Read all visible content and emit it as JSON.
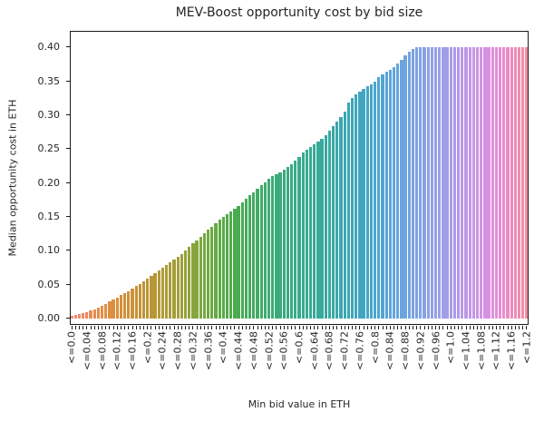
{
  "figure": {
    "background": "#ffffff",
    "spine_color": "#1a1a1a",
    "text_color": "#262626"
  },
  "chart_data": {
    "type": "bar",
    "title": "MEV-Boost opportunity cost by bid size",
    "xlabel": "Min bid value in ETH",
    "ylabel": "Median opportunity cost in ETH",
    "grid": false,
    "legend": "none",
    "x_bin_start": 0.0,
    "x_bin_step": 0.01,
    "x_tick_label_every": 4,
    "x_tick_labels": [
      "<=0.0",
      "<=0.04",
      "<=0.08",
      "<=0.12",
      "<=0.16",
      "<=0.2",
      "<=0.24",
      "<=0.28",
      "<=0.32",
      "<=0.36",
      "<=0.4",
      "<=0.44",
      "<=0.48",
      "<=0.52",
      "<=0.56",
      "<=0.6",
      "<=0.64",
      "<=0.68",
      "<=0.72",
      "<=0.76",
      "<=0.8",
      "<=0.84",
      "<=0.88",
      "<=0.92",
      "<=0.96",
      "<=1.0",
      "<=1.04",
      "<=1.08",
      "<=1.12",
      "<=1.16",
      "<=1.2"
    ],
    "y_ticks": [
      0.0,
      0.05,
      0.1,
      0.15,
      0.2,
      0.25,
      0.3,
      0.35,
      0.4
    ],
    "y_tick_labels": [
      "0.00",
      "0.05",
      "0.10",
      "0.15",
      "0.20",
      "0.25",
      "0.30",
      "0.35",
      "0.40"
    ],
    "ylim": [
      -0.0098,
      0.4236
    ],
    "value_cap": 0.4,
    "values": [
      0.004,
      0.005,
      0.006,
      0.007,
      0.009,
      0.011,
      0.013,
      0.016,
      0.018,
      0.021,
      0.025,
      0.028,
      0.031,
      0.034,
      0.037,
      0.04,
      0.044,
      0.048,
      0.051,
      0.055,
      0.058,
      0.062,
      0.066,
      0.07,
      0.074,
      0.078,
      0.082,
      0.086,
      0.091,
      0.095,
      0.1,
      0.105,
      0.11,
      0.115,
      0.12,
      0.125,
      0.13,
      0.135,
      0.14,
      0.145,
      0.15,
      0.154,
      0.158,
      0.162,
      0.166,
      0.171,
      0.176,
      0.181,
      0.186,
      0.191,
      0.196,
      0.2,
      0.206,
      0.209,
      0.212,
      0.215,
      0.219,
      0.223,
      0.227,
      0.232,
      0.238,
      0.244,
      0.249,
      0.253,
      0.257,
      0.261,
      0.265,
      0.27,
      0.276,
      0.283,
      0.29,
      0.296,
      0.305,
      0.318,
      0.325,
      0.33,
      0.334,
      0.338,
      0.342,
      0.345,
      0.349,
      0.356,
      0.36,
      0.363,
      0.366,
      0.37,
      0.375,
      0.381,
      0.387,
      0.393,
      0.397,
      0.4,
      0.4,
      0.4,
      0.4,
      0.4,
      0.4,
      0.4,
      0.4,
      0.4,
      0.4,
      0.4,
      0.4,
      0.4,
      0.4,
      0.4,
      0.4,
      0.4,
      0.4,
      0.4,
      0.4,
      0.4,
      0.4,
      0.4,
      0.4,
      0.4,
      0.4,
      0.4,
      0.4,
      0.4,
      0.4
    ],
    "palette_name": "rainbow-husl-like",
    "palette_stops": [
      {
        "pos": 0.0,
        "color": "#f08a7a"
      },
      {
        "pos": 0.05,
        "color": "#e78c4d"
      },
      {
        "pos": 0.1,
        "color": "#d98f3b"
      },
      {
        "pos": 0.17,
        "color": "#bb9535"
      },
      {
        "pos": 0.24,
        "color": "#9fa03a"
      },
      {
        "pos": 0.3,
        "color": "#6faa40"
      },
      {
        "pos": 0.36,
        "color": "#4aab4f"
      },
      {
        "pos": 0.43,
        "color": "#3dab71"
      },
      {
        "pos": 0.5,
        "color": "#37ab8d"
      },
      {
        "pos": 0.56,
        "color": "#38a9a0"
      },
      {
        "pos": 0.61,
        "color": "#3ba6b5"
      },
      {
        "pos": 0.66,
        "color": "#47a4cb"
      },
      {
        "pos": 0.71,
        "color": "#63a5dc"
      },
      {
        "pos": 0.76,
        "color": "#7da2e2"
      },
      {
        "pos": 0.8,
        "color": "#96a0e7"
      },
      {
        "pos": 0.84,
        "color": "#ab9ae8"
      },
      {
        "pos": 0.88,
        "color": "#c595e7"
      },
      {
        "pos": 0.92,
        "color": "#dc90e0"
      },
      {
        "pos": 0.95,
        "color": "#e98ccd"
      },
      {
        "pos": 0.98,
        "color": "#ef8cb2"
      },
      {
        "pos": 1.0,
        "color": "#f08da5"
      }
    ]
  }
}
